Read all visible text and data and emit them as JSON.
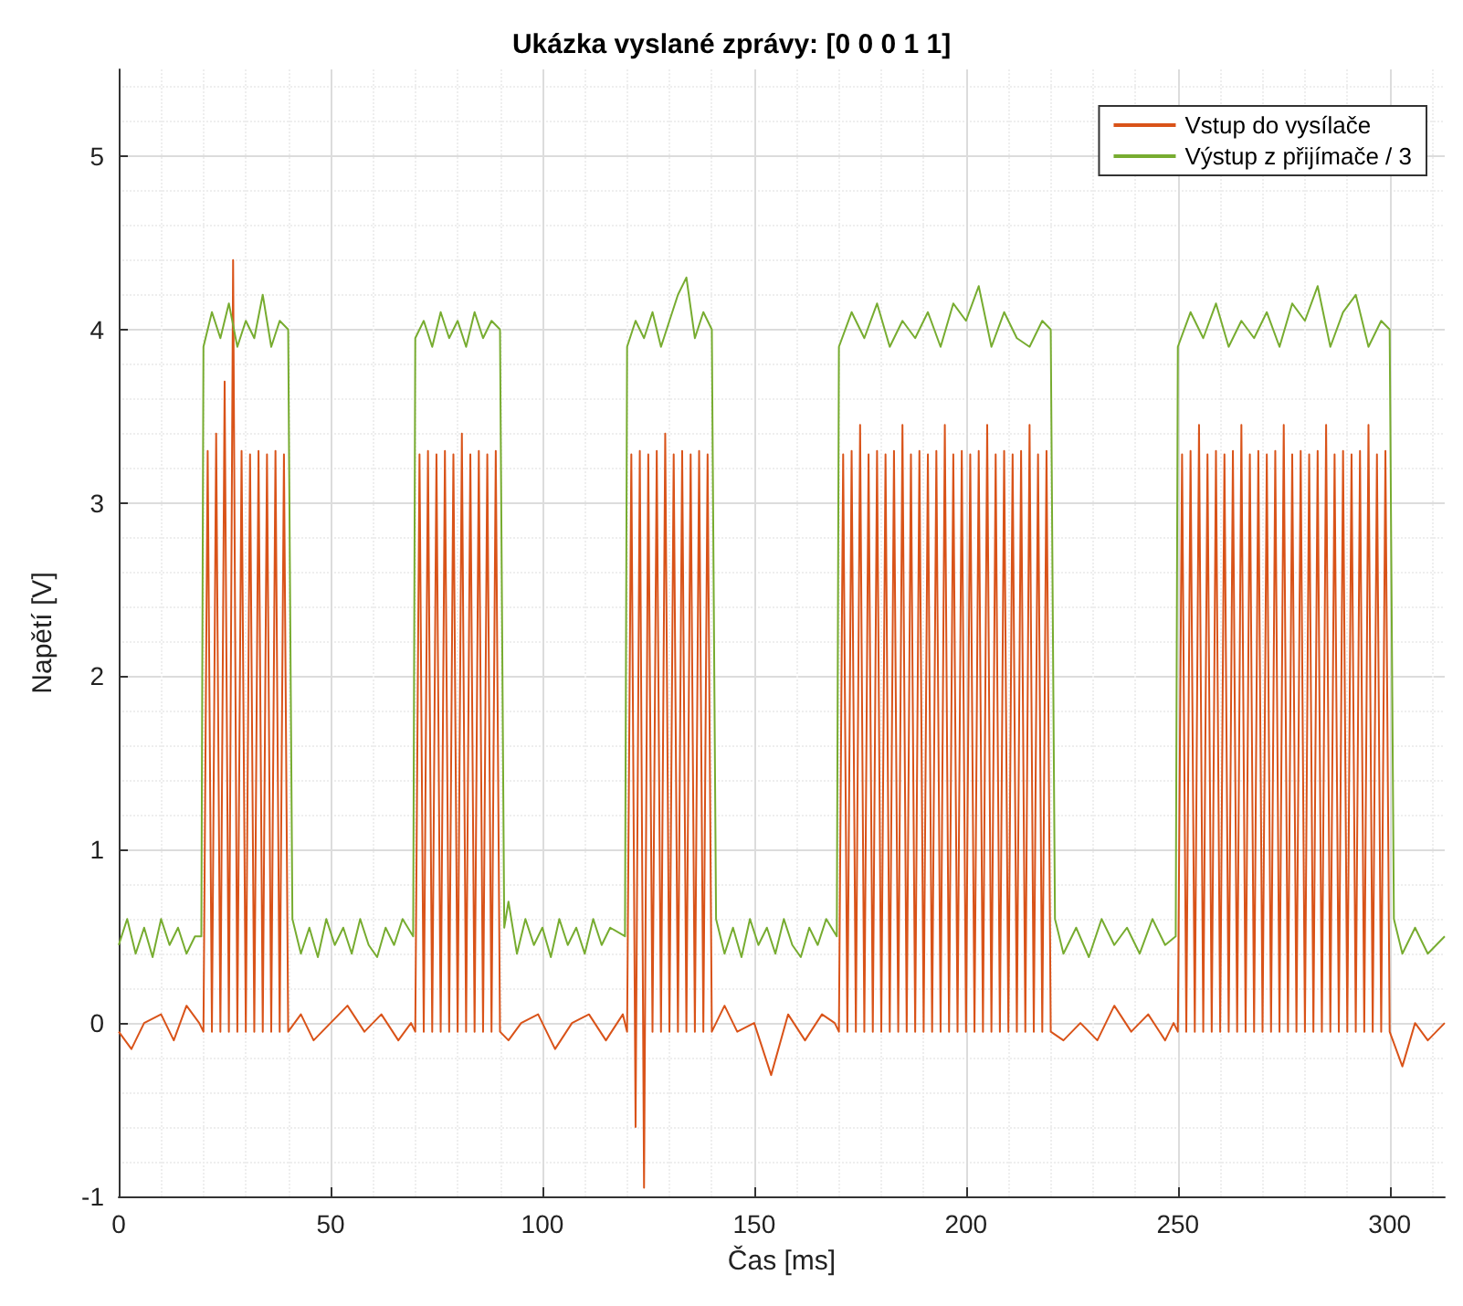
{
  "chart_data": {
    "type": "line",
    "title": "Ukázka vyslané zprávy: [0 0 0 1 1]",
    "xlabel": "Čas [ms]",
    "ylabel": "Napětí [V]",
    "xlim": [
      0,
      313
    ],
    "ylim": [
      -1,
      5.5
    ],
    "xticks": [
      0,
      50,
      100,
      150,
      200,
      250,
      300
    ],
    "yticks": [
      -1,
      0,
      1,
      2,
      3,
      4,
      5
    ],
    "grid": true,
    "legend": "top right",
    "series": [
      {
        "name": "Vstup do vysílače",
        "color": "#d95319",
        "x": [
          0,
          3,
          6,
          10,
          13,
          16,
          19,
          20,
          21,
          22,
          23,
          24,
          25,
          26,
          27,
          28,
          29,
          30,
          31,
          32,
          33,
          34,
          35,
          36,
          37,
          38,
          39,
          40,
          43,
          46,
          50,
          54,
          58,
          62,
          66,
          69,
          70,
          71,
          72,
          73,
          74,
          75,
          76,
          77,
          78,
          79,
          80,
          81,
          82,
          83,
          84,
          85,
          86,
          87,
          88,
          89,
          90,
          92,
          95,
          99,
          103,
          107,
          111,
          115,
          119,
          120,
          121,
          122,
          123,
          124,
          125,
          126,
          127,
          128,
          129,
          130,
          131,
          132,
          133,
          134,
          135,
          136,
          137,
          138,
          139,
          140,
          143,
          146,
          150,
          154,
          158,
          162,
          166,
          169,
          170,
          171,
          172,
          173,
          174,
          175,
          176,
          177,
          178,
          179,
          180,
          181,
          182,
          183,
          184,
          185,
          186,
          187,
          188,
          189,
          190,
          191,
          192,
          193,
          194,
          195,
          196,
          197,
          198,
          199,
          200,
          201,
          202,
          203,
          204,
          205,
          206,
          207,
          208,
          209,
          210,
          211,
          212,
          213,
          214,
          215,
          216,
          217,
          218,
          219,
          220,
          223,
          227,
          231,
          235,
          239,
          243,
          247,
          249,
          250,
          251,
          252,
          253,
          254,
          255,
          256,
          257,
          258,
          259,
          260,
          261,
          262,
          263,
          264,
          265,
          266,
          267,
          268,
          269,
          270,
          271,
          272,
          273,
          274,
          275,
          276,
          277,
          278,
          279,
          280,
          281,
          282,
          283,
          284,
          285,
          286,
          287,
          288,
          289,
          290,
          291,
          292,
          293,
          294,
          295,
          296,
          297,
          298,
          299,
          300,
          303,
          306,
          309,
          313
        ],
        "values": [
          -0.05,
          -0.15,
          0,
          0.05,
          -0.1,
          0.1,
          0,
          -0.05,
          3.3,
          -0.05,
          3.4,
          -0.05,
          3.7,
          -0.05,
          4.4,
          -0.05,
          3.3,
          -0.05,
          3.28,
          -0.05,
          3.3,
          -0.05,
          3.28,
          -0.05,
          3.3,
          -0.05,
          3.28,
          -0.05,
          0.05,
          -0.1,
          0,
          0.1,
          -0.05,
          0.05,
          -0.1,
          0,
          -0.05,
          3.28,
          -0.05,
          3.3,
          -0.05,
          3.28,
          -0.05,
          3.3,
          -0.05,
          3.28,
          -0.05,
          3.4,
          -0.05,
          3.28,
          -0.05,
          3.3,
          -0.05,
          3.28,
          -0.05,
          3.3,
          -0.05,
          -0.1,
          0,
          0.05,
          -0.15,
          0,
          0.05,
          -0.1,
          0.05,
          -0.05,
          3.28,
          -0.6,
          3.3,
          -0.95,
          3.28,
          -0.05,
          3.3,
          -0.05,
          3.4,
          -0.05,
          3.28,
          -0.05,
          3.3,
          -0.05,
          3.28,
          -0.05,
          3.3,
          -0.05,
          3.28,
          -0.05,
          0.1,
          -0.05,
          0,
          -0.3,
          0.05,
          -0.1,
          0.05,
          0,
          -0.05,
          3.28,
          -0.05,
          3.3,
          -0.05,
          3.45,
          -0.05,
          3.28,
          -0.05,
          3.3,
          -0.05,
          3.28,
          -0.05,
          3.3,
          -0.05,
          3.45,
          -0.05,
          3.28,
          -0.05,
          3.3,
          -0.05,
          3.28,
          -0.05,
          3.3,
          -0.05,
          3.45,
          -0.05,
          3.28,
          -0.05,
          3.3,
          -0.05,
          3.28,
          -0.05,
          3.3,
          -0.05,
          3.45,
          -0.05,
          3.28,
          -0.05,
          3.3,
          -0.05,
          3.28,
          -0.05,
          3.3,
          -0.05,
          3.45,
          -0.05,
          3.28,
          -0.05,
          3.3,
          -0.05,
          -0.1,
          0,
          -0.1,
          0.1,
          -0.05,
          0.05,
          -0.1,
          0,
          -0.05,
          3.28,
          -0.05,
          3.3,
          -0.05,
          3.45,
          -0.05,
          3.28,
          -0.05,
          3.3,
          -0.05,
          3.28,
          -0.05,
          3.3,
          -0.05,
          3.45,
          -0.05,
          3.28,
          -0.05,
          3.3,
          -0.05,
          3.28,
          -0.05,
          3.3,
          -0.05,
          3.45,
          -0.05,
          3.28,
          -0.05,
          3.3,
          -0.05,
          3.28,
          -0.05,
          3.3,
          -0.05,
          3.45,
          -0.05,
          3.28,
          -0.05,
          3.3,
          -0.05,
          3.28,
          -0.05,
          3.3,
          -0.05,
          3.45,
          -0.05,
          3.28,
          -0.05,
          3.3,
          -0.05,
          -0.25,
          0,
          -0.1,
          0
        ]
      },
      {
        "name": "Výstup z přijímače / 3",
        "color": "#77ac30",
        "x": [
          0,
          2,
          4,
          6,
          8,
          10,
          12,
          14,
          16,
          18,
          19.5,
          20,
          22,
          24,
          26,
          28,
          30,
          32,
          34,
          36,
          38,
          40,
          41,
          43,
          45,
          47,
          49,
          51,
          53,
          55,
          57,
          59,
          61,
          63,
          65,
          67,
          69.5,
          70,
          72,
          74,
          76,
          78,
          80,
          82,
          84,
          86,
          88,
          90,
          91,
          92,
          94,
          96,
          98,
          100,
          102,
          104,
          106,
          108,
          110,
          112,
          114,
          116,
          119.5,
          120,
          122,
          124,
          126,
          128,
          130,
          132,
          134,
          136,
          138,
          140,
          141,
          143,
          145,
          147,
          149,
          151,
          153,
          155,
          157,
          159,
          161,
          163,
          165,
          167,
          169.5,
          170,
          173,
          176,
          179,
          182,
          185,
          188,
          191,
          194,
          197,
          200,
          203,
          206,
          209,
          212,
          215,
          218,
          220,
          221,
          223,
          226,
          229,
          232,
          235,
          238,
          241,
          244,
          247,
          249.5,
          250,
          253,
          256,
          259,
          262,
          265,
          268,
          271,
          274,
          277,
          280,
          283,
          286,
          289,
          292,
          295,
          298,
          300,
          301,
          303,
          306,
          309,
          313
        ],
        "values": [
          0.45,
          0.6,
          0.4,
          0.55,
          0.38,
          0.6,
          0.45,
          0.55,
          0.4,
          0.5,
          0.5,
          3.9,
          4.1,
          3.95,
          4.15,
          3.9,
          4.05,
          3.95,
          4.2,
          3.9,
          4.05,
          4,
          0.6,
          0.4,
          0.55,
          0.38,
          0.6,
          0.45,
          0.55,
          0.4,
          0.6,
          0.45,
          0.38,
          0.55,
          0.45,
          0.6,
          0.5,
          3.95,
          4.05,
          3.9,
          4.1,
          3.95,
          4.05,
          3.9,
          4.1,
          3.95,
          4.05,
          4,
          0.55,
          0.7,
          0.4,
          0.6,
          0.45,
          0.55,
          0.38,
          0.6,
          0.45,
          0.55,
          0.4,
          0.6,
          0.45,
          0.55,
          0.5,
          3.9,
          4.05,
          3.95,
          4.1,
          3.9,
          4.05,
          4.2,
          4.3,
          3.95,
          4.1,
          4,
          0.6,
          0.4,
          0.55,
          0.38,
          0.6,
          0.45,
          0.55,
          0.4,
          0.6,
          0.45,
          0.38,
          0.55,
          0.45,
          0.6,
          0.5,
          3.9,
          4.1,
          3.95,
          4.15,
          3.9,
          4.05,
          3.95,
          4.1,
          3.9,
          4.15,
          4.05,
          4.25,
          3.9,
          4.1,
          3.95,
          3.9,
          4.05,
          4,
          0.6,
          0.4,
          0.55,
          0.38,
          0.6,
          0.45,
          0.55,
          0.4,
          0.6,
          0.45,
          0.5,
          3.9,
          4.1,
          3.95,
          4.15,
          3.9,
          4.05,
          3.95,
          4.1,
          3.9,
          4.15,
          4.05,
          4.25,
          3.9,
          4.1,
          4.2,
          3.9,
          4.05,
          4,
          0.6,
          0.4,
          0.55,
          0.4,
          0.5
        ]
      }
    ]
  }
}
